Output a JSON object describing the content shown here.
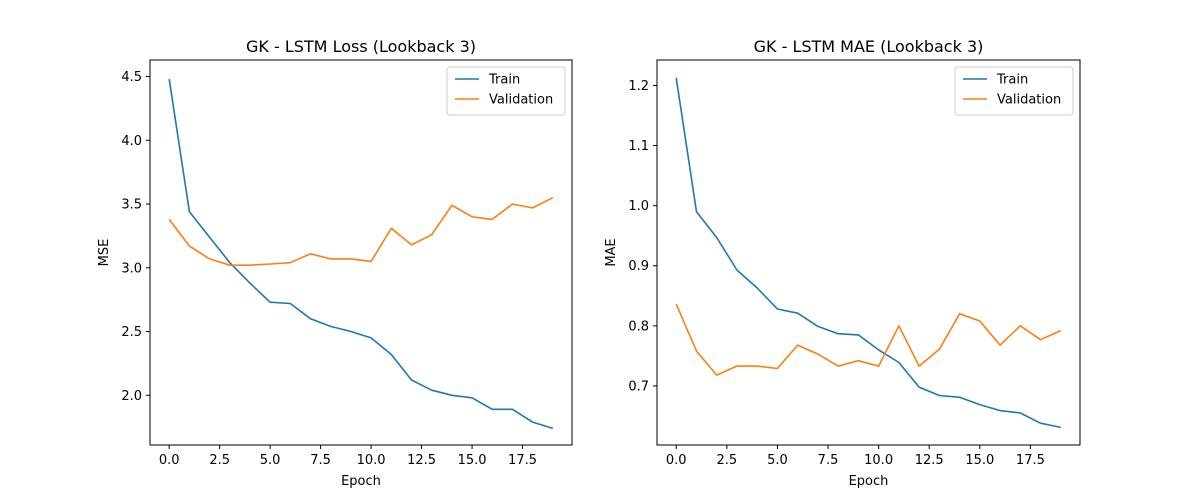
{
  "chart_data": [
    {
      "type": "line",
      "title": "GK - LSTM Loss (Lookback 3)",
      "xlabel": "Epoch",
      "ylabel": "MSE",
      "xlim": [
        -0.95,
        19.95
      ],
      "ylim": [
        1.61,
        4.63
      ],
      "xticks": [
        0.0,
        2.5,
        5.0,
        7.5,
        10.0,
        12.5,
        15.0,
        17.5
      ],
      "xtick_labels": [
        "0.0",
        "2.5",
        "5.0",
        "7.5",
        "10.0",
        "12.5",
        "15.0",
        "17.5"
      ],
      "yticks": [
        2.0,
        2.5,
        3.0,
        3.5,
        4.0,
        4.5
      ],
      "ytick_labels": [
        "2.0",
        "2.5",
        "3.0",
        "3.5",
        "4.0",
        "4.5"
      ],
      "grid": false,
      "legend": "top-right",
      "x": [
        0,
        1,
        2,
        3,
        4,
        5,
        6,
        7,
        8,
        9,
        10,
        11,
        12,
        13,
        14,
        15,
        16,
        17,
        18,
        19
      ],
      "series": [
        {
          "name": "Train",
          "color": "#1f77b4",
          "values": [
            4.48,
            3.44,
            3.24,
            3.04,
            2.88,
            2.73,
            2.72,
            2.6,
            2.54,
            2.5,
            2.45,
            2.32,
            2.12,
            2.04,
            2.0,
            1.98,
            1.89,
            1.89,
            1.79,
            1.74
          ]
        },
        {
          "name": "Validation",
          "color": "#ff7f0e",
          "values": [
            3.38,
            3.17,
            3.07,
            3.02,
            3.02,
            3.03,
            3.04,
            3.11,
            3.07,
            3.07,
            3.05,
            3.31,
            3.18,
            3.26,
            3.49,
            3.4,
            3.38,
            3.5,
            3.47,
            3.55
          ]
        }
      ]
    },
    {
      "type": "line",
      "title": "GK - LSTM MAE (Lookback 3)",
      "xlabel": "Epoch",
      "ylabel": "MAE",
      "xlim": [
        -0.95,
        19.95
      ],
      "ylim": [
        0.6017,
        1.2424
      ],
      "xticks": [
        0.0,
        2.5,
        5.0,
        7.5,
        10.0,
        12.5,
        15.0,
        17.5
      ],
      "xtick_labels": [
        "0.0",
        "2.5",
        "5.0",
        "7.5",
        "10.0",
        "12.5",
        "15.0",
        "17.5"
      ],
      "yticks": [
        0.7,
        0.8,
        0.9,
        1.0,
        1.1,
        1.2
      ],
      "ytick_labels": [
        "0.7",
        "0.8",
        "0.9",
        "1.0",
        "1.1",
        "1.2"
      ],
      "grid": false,
      "legend": "top-right",
      "x": [
        0,
        1,
        2,
        3,
        4,
        5,
        6,
        7,
        8,
        9,
        10,
        11,
        12,
        13,
        14,
        15,
        16,
        17,
        18,
        19
      ],
      "series": [
        {
          "name": "Train",
          "color": "#1f77b4",
          "values": [
            1.213,
            0.99,
            0.947,
            0.893,
            0.863,
            0.828,
            0.821,
            0.799,
            0.787,
            0.785,
            0.76,
            0.739,
            0.698,
            0.684,
            0.681,
            0.669,
            0.659,
            0.655,
            0.638,
            0.631
          ]
        },
        {
          "name": "Validation",
          "color": "#ff7f0e",
          "values": [
            0.836,
            0.758,
            0.718,
            0.733,
            0.733,
            0.729,
            0.768,
            0.753,
            0.733,
            0.742,
            0.733,
            0.8,
            0.733,
            0.761,
            0.82,
            0.808,
            0.768,
            0.8,
            0.777,
            0.792
          ]
        }
      ]
    }
  ]
}
